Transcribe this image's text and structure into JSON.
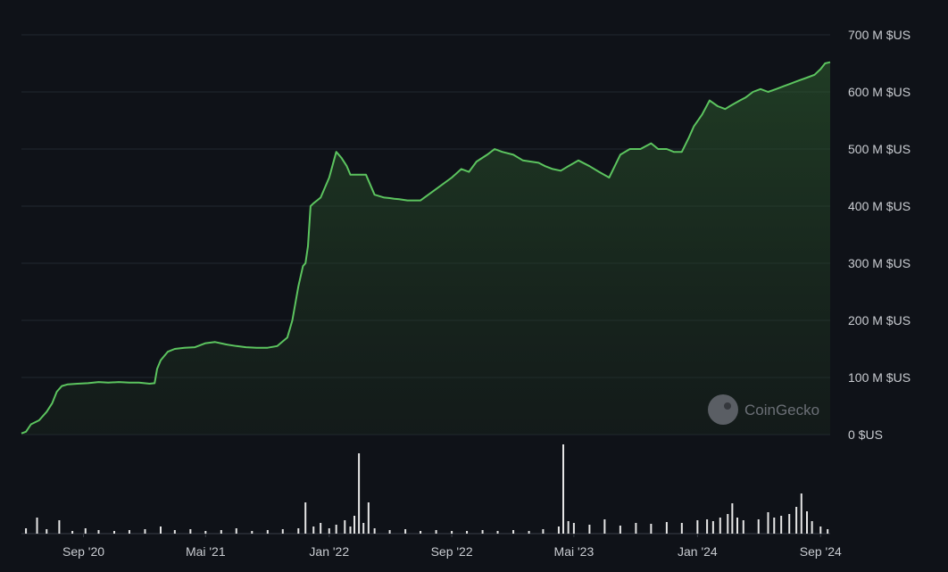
{
  "chart_data": {
    "type": "area",
    "watermark": "CoinGecko",
    "y_ticks": [
      "0 $US",
      "100 M $US",
      "200 M $US",
      "300 M $US",
      "400 M $US",
      "500 M $US",
      "600 M $US",
      "700 M $US"
    ],
    "ylim": [
      0,
      700
    ],
    "x_ticks": [
      "Sep '20",
      "Mai '21",
      "Jan '22",
      "Sep '22",
      "Mai '23",
      "Jan '24",
      "Sep '24"
    ],
    "x_tick_dates": [
      "2020-09-01",
      "2021-05-01",
      "2022-01-01",
      "2022-09-01",
      "2023-05-01",
      "2024-01-01",
      "2024-09-01"
    ],
    "xlim": [
      "2020-05-01",
      "2024-09-20"
    ],
    "grid": true,
    "line_color": "#5cc45f",
    "series": [
      {
        "x": [
          "2020-05-01",
          "2020-05-10",
          "2020-05-20",
          "2020-06-05",
          "2020-06-20",
          "2020-07-01",
          "2020-07-10",
          "2020-07-20",
          "2020-08-01",
          "2020-08-20",
          "2020-09-10",
          "2020-10-01",
          "2020-10-20",
          "2020-11-10",
          "2020-12-01",
          "2020-12-20",
          "2021-01-10",
          "2021-01-20",
          "2021-01-25",
          "2021-02-01",
          "2021-02-15",
          "2021-03-01",
          "2021-03-20",
          "2021-04-10",
          "2021-05-01",
          "2021-05-20",
          "2021-06-10",
          "2021-07-01",
          "2021-07-20",
          "2021-08-10",
          "2021-09-01",
          "2021-09-20",
          "2021-10-10",
          "2021-10-20",
          "2021-11-01",
          "2021-11-10",
          "2021-11-15",
          "2021-11-20",
          "2021-11-25",
          "2021-12-01",
          "2021-12-08",
          "2021-12-15",
          "2022-01-01",
          "2022-01-15",
          "2022-01-25",
          "2022-02-05",
          "2022-02-12",
          "2022-02-20",
          "2022-03-01",
          "2022-03-15",
          "2022-04-01",
          "2022-04-20",
          "2022-05-01",
          "2022-05-10",
          "2022-05-20",
          "2022-06-05",
          "2022-07-01",
          "2022-08-01",
          "2022-09-01",
          "2022-09-20",
          "2022-10-05",
          "2022-10-20",
          "2022-11-10",
          "2022-11-25",
          "2022-12-10",
          "2023-01-01",
          "2023-01-20",
          "2023-02-05",
          "2023-02-20",
          "2023-03-05",
          "2023-03-20",
          "2023-04-05",
          "2023-04-20",
          "2023-05-10",
          "2023-06-01",
          "2023-06-20",
          "2023-07-10",
          "2023-08-01",
          "2023-08-20",
          "2023-09-10",
          "2023-10-01",
          "2023-10-15",
          "2023-11-01",
          "2023-11-15",
          "2023-12-01",
          "2023-12-15",
          "2023-12-25",
          "2024-01-10",
          "2024-01-25",
          "2024-02-10",
          "2024-02-25",
          "2024-03-05",
          "2024-03-15",
          "2024-03-25",
          "2024-04-05",
          "2024-04-20",
          "2024-05-05",
          "2024-05-20",
          "2024-06-05",
          "2024-06-20",
          "2024-07-05",
          "2024-07-20",
          "2024-08-05",
          "2024-08-20",
          "2024-09-01",
          "2024-09-10",
          "2024-09-20"
        ],
        "y": [
          2,
          5,
          18,
          25,
          40,
          55,
          75,
          85,
          88,
          89,
          90,
          92,
          91,
          92,
          91,
          91,
          89,
          90,
          115,
          130,
          145,
          150,
          152,
          153,
          160,
          162,
          158,
          155,
          153,
          152,
          152,
          155,
          170,
          200,
          260,
          295,
          300,
          330,
          400,
          405,
          410,
          415,
          450,
          495,
          485,
          470,
          455,
          455,
          455,
          455,
          420,
          415,
          414,
          413,
          412,
          410,
          410,
          430,
          450,
          465,
          460,
          478,
          490,
          500,
          495,
          490,
          480,
          478,
          476,
          470,
          465,
          462,
          470,
          480,
          470,
          460,
          450,
          490,
          500,
          500,
          510,
          500,
          500,
          495,
          495,
          520,
          540,
          560,
          585,
          575,
          570,
          575,
          580,
          585,
          590,
          600,
          605,
          600,
          605,
          610,
          615,
          620,
          625,
          630,
          640,
          650,
          652
        ]
      }
    ],
    "volume_series": {
      "x": [
        "2020-05-10",
        "2020-06-01",
        "2020-06-20",
        "2020-07-15",
        "2020-08-10",
        "2020-09-05",
        "2020-10-01",
        "2020-11-01",
        "2020-12-01",
        "2021-01-01",
        "2021-02-01",
        "2021-03-01",
        "2021-04-01",
        "2021-05-01",
        "2021-06-01",
        "2021-07-01",
        "2021-08-01",
        "2021-09-01",
        "2021-10-01",
        "2021-11-01",
        "2021-11-15",
        "2021-12-01",
        "2021-12-15",
        "2022-01-01",
        "2022-01-15",
        "2022-02-01",
        "2022-02-12",
        "2022-02-20",
        "2022-03-01",
        "2022-03-10",
        "2022-03-20",
        "2022-04-01",
        "2022-05-01",
        "2022-06-01",
        "2022-07-01",
        "2022-08-01",
        "2022-09-01",
        "2022-10-01",
        "2022-11-01",
        "2022-12-01",
        "2023-01-01",
        "2023-02-01",
        "2023-03-01",
        "2023-04-01",
        "2023-04-10",
        "2023-04-20",
        "2023-05-01",
        "2023-06-01",
        "2023-07-01",
        "2023-08-01",
        "2023-09-01",
        "2023-10-01",
        "2023-11-01",
        "2023-12-01",
        "2024-01-01",
        "2024-01-20",
        "2024-02-01",
        "2024-02-15",
        "2024-03-01",
        "2024-03-10",
        "2024-03-20",
        "2024-04-01",
        "2024-05-01",
        "2024-05-20",
        "2024-06-01",
        "2024-06-15",
        "2024-07-01",
        "2024-07-15",
        "2024-07-25",
        "2024-08-05",
        "2024-08-15",
        "2024-09-01",
        "2024-09-15"
      ],
      "y": [
        6,
        18,
        5,
        15,
        3,
        6,
        4,
        3,
        4,
        5,
        8,
        4,
        5,
        3,
        4,
        6,
        3,
        4,
        5,
        6,
        35,
        8,
        12,
        6,
        10,
        15,
        8,
        20,
        90,
        12,
        35,
        6,
        4,
        5,
        3,
        4,
        3,
        3,
        4,
        3,
        4,
        3,
        5,
        8,
        100,
        14,
        12,
        10,
        16,
        9,
        12,
        11,
        13,
        12,
        15,
        16,
        14,
        18,
        22,
        34,
        18,
        15,
        16,
        24,
        18,
        20,
        22,
        30,
        45,
        25,
        14,
        8,
        5
      ]
    }
  }
}
